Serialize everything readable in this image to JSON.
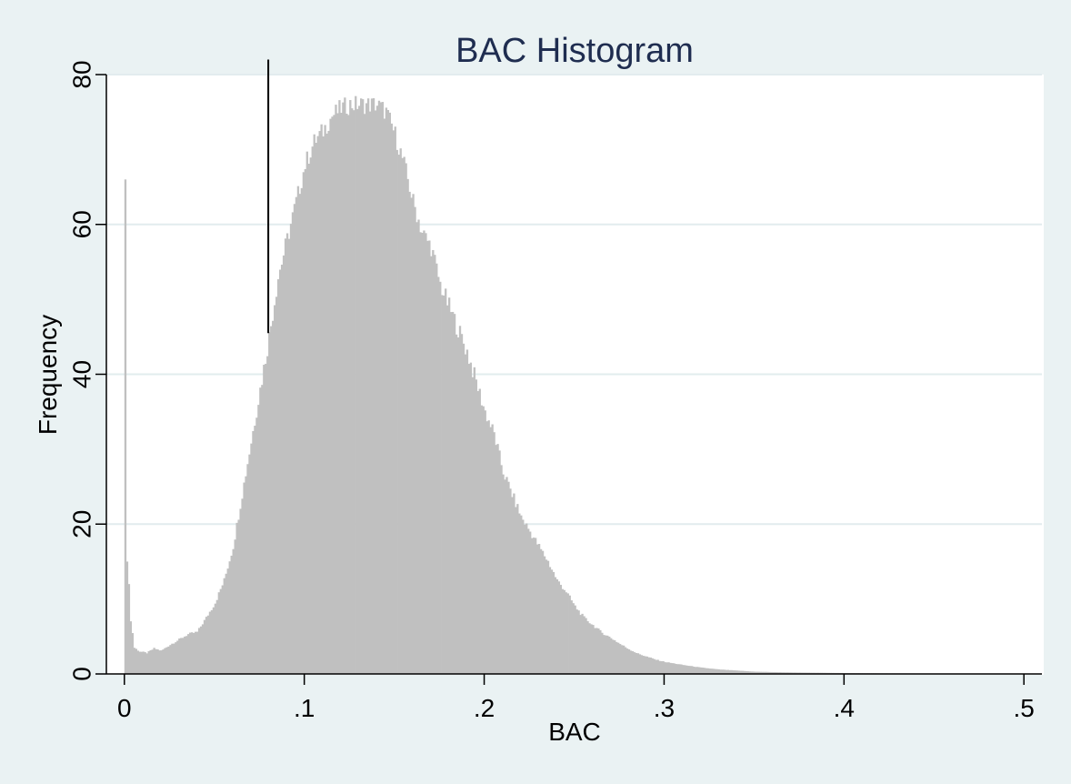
{
  "chart_data": {
    "type": "bar",
    "title": "BAC Histogram",
    "xlabel": "BAC",
    "ylabel": "Frequency",
    "xlim": [
      -0.01,
      0.51
    ],
    "ylim": [
      0,
      80
    ],
    "x_ticks": [
      0,
      0.1,
      0.2,
      0.3,
      0.4,
      0.5
    ],
    "x_tick_labels": [
      "0",
      ".1",
      ".2",
      ".3",
      ".4",
      ".5"
    ],
    "y_ticks": [
      0,
      20,
      40,
      60,
      80
    ],
    "y_tick_labels": [
      "0",
      "20",
      "40",
      "60",
      "80"
    ],
    "grid": true,
    "bin_width": 0.001,
    "reference_line": {
      "x": 0.08,
      "y_from": 45.5,
      "y_to": 82
    },
    "frequency_profile": [
      [
        0.0,
        66
      ],
      [
        0.001,
        15
      ],
      [
        0.002,
        12
      ],
      [
        0.003,
        7
      ],
      [
        0.004,
        5.5
      ],
      [
        0.005,
        3.5
      ],
      [
        0.008,
        3
      ],
      [
        0.012,
        2.8
      ],
      [
        0.016,
        3.4
      ],
      [
        0.02,
        3.1
      ],
      [
        0.025,
        3.9
      ],
      [
        0.03,
        4.6
      ],
      [
        0.035,
        5.3
      ],
      [
        0.04,
        5.6
      ],
      [
        0.045,
        7.5
      ],
      [
        0.05,
        9.5
      ],
      [
        0.055,
        12.5
      ],
      [
        0.06,
        17
      ],
      [
        0.065,
        24
      ],
      [
        0.07,
        31
      ],
      [
        0.075,
        38
      ],
      [
        0.08,
        45
      ],
      [
        0.085,
        53
      ],
      [
        0.09,
        58
      ],
      [
        0.095,
        63
      ],
      [
        0.1,
        68
      ],
      [
        0.105,
        71
      ],
      [
        0.11,
        72.5
      ],
      [
        0.115,
        74.5
      ],
      [
        0.12,
        75.5
      ],
      [
        0.125,
        76
      ],
      [
        0.13,
        76
      ],
      [
        0.135,
        76
      ],
      [
        0.14,
        76
      ],
      [
        0.145,
        75
      ],
      [
        0.15,
        72
      ],
      [
        0.155,
        68
      ],
      [
        0.16,
        63
      ],
      [
        0.165,
        59
      ],
      [
        0.17,
        57
      ],
      [
        0.175,
        52
      ],
      [
        0.18,
        49
      ],
      [
        0.185,
        46
      ],
      [
        0.19,
        43
      ],
      [
        0.195,
        39
      ],
      [
        0.2,
        35
      ],
      [
        0.205,
        32
      ],
      [
        0.21,
        27
      ],
      [
        0.215,
        24
      ],
      [
        0.22,
        21
      ],
      [
        0.225,
        19
      ],
      [
        0.23,
        17
      ],
      [
        0.235,
        15
      ],
      [
        0.24,
        12.5
      ],
      [
        0.245,
        11
      ],
      [
        0.25,
        9
      ],
      [
        0.255,
        7.5
      ],
      [
        0.26,
        6.5
      ],
      [
        0.265,
        5.5
      ],
      [
        0.27,
        4.8
      ],
      [
        0.275,
        4
      ],
      [
        0.28,
        3.3
      ],
      [
        0.285,
        2.7
      ],
      [
        0.29,
        2.3
      ],
      [
        0.295,
        1.9
      ],
      [
        0.3,
        1.6
      ],
      [
        0.31,
        1.2
      ],
      [
        0.32,
        0.85
      ],
      [
        0.33,
        0.6
      ],
      [
        0.34,
        0.45
      ],
      [
        0.35,
        0.3
      ],
      [
        0.37,
        0.2
      ],
      [
        0.4,
        0.12
      ],
      [
        0.42,
        0.08
      ],
      [
        0.45,
        0.05
      ]
    ],
    "colors": {
      "bars": "#c0c0c0",
      "reference_line": "#000000",
      "grid": "#e2ecee",
      "axis": "#000000",
      "title": "#1f2d50",
      "plot_background": "#ffffff",
      "outer_background": "#eaf2f3"
    }
  }
}
